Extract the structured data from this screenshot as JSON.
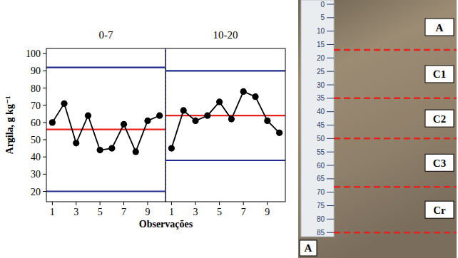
{
  "chart_data": [
    {
      "type": "line",
      "title": "0-7",
      "ylabel": "Argila, g kg⁻¹",
      "xlabel": "Observações",
      "x": [
        1,
        2,
        3,
        4,
        5,
        6,
        7,
        8,
        9,
        10
      ],
      "series": [
        {
          "color": "#000000",
          "marker": "circle",
          "values": [
            60,
            71,
            48,
            64,
            44,
            45,
            59,
            43,
            61,
            64
          ]
        }
      ],
      "center_line": 56,
      "control_limits": [
        20,
        92
      ],
      "xlim": [
        0.5,
        10.5
      ],
      "xticks": [
        1,
        3,
        5,
        7,
        9
      ],
      "ylim": [
        14,
        103
      ],
      "yticks": [
        20,
        30,
        40,
        50,
        60,
        70,
        80,
        90,
        100
      ],
      "grid": false
    },
    {
      "type": "line",
      "title": "10-20",
      "x": [
        1,
        2,
        3,
        4,
        5,
        6,
        7,
        8,
        9,
        10
      ],
      "series": [
        {
          "color": "#000000",
          "marker": "circle",
          "values": [
            45,
            67,
            61,
            64,
            72,
            62,
            78,
            75,
            61,
            54
          ]
        }
      ],
      "center_line": 64,
      "control_limits": [
        38,
        90
      ],
      "xlim": [
        0.5,
        10.5
      ],
      "xticks": [
        1,
        3,
        5,
        7,
        9
      ],
      "ylim": [
        14,
        103
      ],
      "yticks": [
        20,
        30,
        40,
        50,
        60,
        70,
        80,
        90,
        100
      ],
      "grid": false,
      "tick_labels": "x"
    }
  ],
  "profile": {
    "panel_letter": "A",
    "depth_range": [
      0,
      86
    ],
    "ruler_ticks": [
      0,
      5,
      10,
      15,
      20,
      25,
      30,
      35,
      40,
      45,
      50,
      55,
      60,
      65,
      70,
      75,
      80,
      85
    ],
    "horizons": [
      "A",
      "C1",
      "C2",
      "C3",
      "Cr"
    ],
    "boundaries": [
      17,
      35,
      50,
      68,
      85
    ]
  }
}
